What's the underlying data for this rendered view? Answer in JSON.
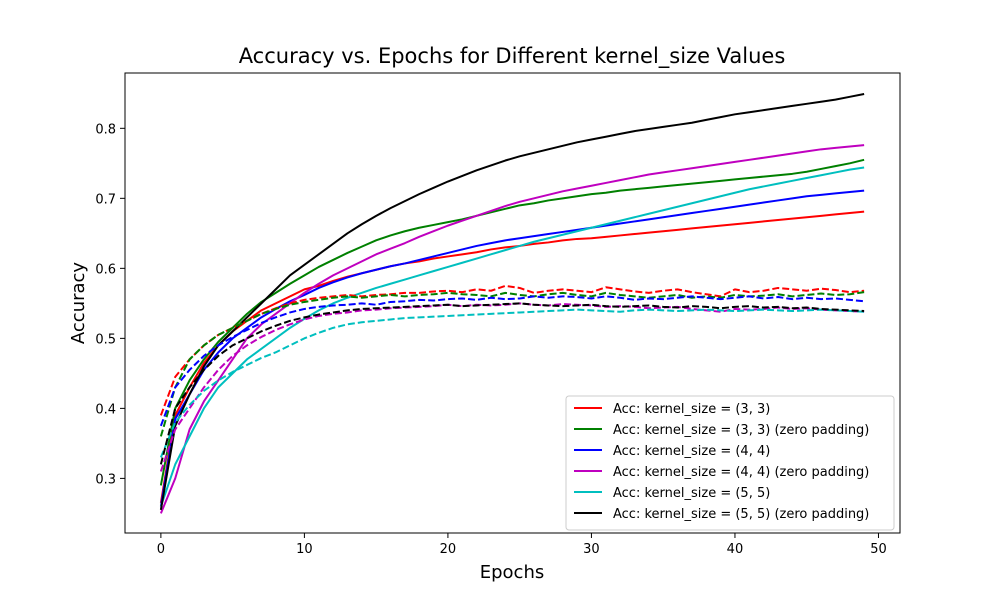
{
  "chart_data": {
    "type": "line",
    "title": "Accuracy vs. Epochs for Different kernel_size Values",
    "xlabel": "Epochs",
    "ylabel": "Accuracy",
    "xlim": [
      -2.5,
      51.5
    ],
    "ylim": [
      0.222,
      0.879
    ],
    "xticks": [
      0,
      10,
      20,
      30,
      40,
      50
    ],
    "yticks": [
      0.3,
      0.4,
      0.5,
      0.6,
      0.7,
      0.8
    ],
    "grid": false,
    "legend_position": "lower-right",
    "x": [
      0,
      1,
      2,
      3,
      4,
      5,
      6,
      7,
      8,
      9,
      10,
      11,
      12,
      13,
      14,
      15,
      16,
      17,
      18,
      19,
      20,
      21,
      22,
      23,
      24,
      25,
      26,
      27,
      28,
      29,
      30,
      31,
      32,
      33,
      34,
      35,
      36,
      37,
      38,
      39,
      40,
      41,
      42,
      43,
      44,
      45,
      46,
      47,
      48,
      49
    ],
    "series": [
      {
        "name": "Acc: kernel_size = (3, 3)",
        "color": "#ff0000",
        "style": "solid",
        "values": [
          0.265,
          0.39,
          0.43,
          0.465,
          0.49,
          0.51,
          0.525,
          0.54,
          0.55,
          0.56,
          0.57,
          0.575,
          0.582,
          0.588,
          0.593,
          0.598,
          0.603,
          0.607,
          0.61,
          0.614,
          0.617,
          0.62,
          0.623,
          0.627,
          0.63,
          0.632,
          0.635,
          0.637,
          0.64,
          0.642,
          0.643,
          0.645,
          0.647,
          0.649,
          0.651,
          0.653,
          0.655,
          0.657,
          0.659,
          0.661,
          0.663,
          0.665,
          0.667,
          0.669,
          0.671,
          0.673,
          0.675,
          0.677,
          0.679,
          0.681
        ]
      },
      {
        "name": "Acc: kernel_size = (3, 3) (zero padding)",
        "color": "#008000",
        "style": "solid",
        "values": [
          0.29,
          0.4,
          0.44,
          0.47,
          0.495,
          0.515,
          0.535,
          0.552,
          0.565,
          0.578,
          0.59,
          0.602,
          0.612,
          0.622,
          0.631,
          0.64,
          0.647,
          0.653,
          0.658,
          0.662,
          0.666,
          0.67,
          0.675,
          0.68,
          0.685,
          0.69,
          0.693,
          0.697,
          0.7,
          0.703,
          0.706,
          0.708,
          0.711,
          0.713,
          0.715,
          0.717,
          0.719,
          0.721,
          0.723,
          0.725,
          0.727,
          0.729,
          0.731,
          0.733,
          0.735,
          0.738,
          0.742,
          0.746,
          0.75,
          0.755
        ]
      },
      {
        "name": "Acc: kernel_size = (4, 4)",
        "color": "#0000ff",
        "style": "solid",
        "values": [
          0.26,
          0.385,
          0.42,
          0.455,
          0.48,
          0.5,
          0.515,
          0.53,
          0.542,
          0.553,
          0.562,
          0.572,
          0.58,
          0.587,
          0.593,
          0.598,
          0.603,
          0.607,
          0.612,
          0.617,
          0.622,
          0.627,
          0.632,
          0.636,
          0.64,
          0.643,
          0.646,
          0.649,
          0.652,
          0.655,
          0.658,
          0.661,
          0.664,
          0.667,
          0.67,
          0.673,
          0.676,
          0.679,
          0.682,
          0.685,
          0.688,
          0.691,
          0.694,
          0.697,
          0.7,
          0.703,
          0.705,
          0.707,
          0.709,
          0.711
        ]
      },
      {
        "name": "Acc: kernel_size = (4, 4) (zero padding)",
        "color": "#bf00bf",
        "style": "solid",
        "values": [
          0.25,
          0.3,
          0.37,
          0.41,
          0.44,
          0.47,
          0.5,
          0.52,
          0.535,
          0.55,
          0.565,
          0.578,
          0.59,
          0.6,
          0.61,
          0.62,
          0.628,
          0.636,
          0.645,
          0.653,
          0.661,
          0.668,
          0.675,
          0.682,
          0.689,
          0.695,
          0.7,
          0.705,
          0.71,
          0.714,
          0.718,
          0.722,
          0.726,
          0.73,
          0.734,
          0.737,
          0.74,
          0.743,
          0.746,
          0.749,
          0.752,
          0.755,
          0.758,
          0.761,
          0.764,
          0.767,
          0.77,
          0.772,
          0.774,
          0.776
        ]
      },
      {
        "name": "Acc: kernel_size = (5, 5)",
        "color": "#00bfbf",
        "style": "solid",
        "values": [
          0.26,
          0.32,
          0.36,
          0.4,
          0.43,
          0.45,
          0.47,
          0.485,
          0.5,
          0.515,
          0.528,
          0.54,
          0.55,
          0.558,
          0.565,
          0.572,
          0.578,
          0.584,
          0.59,
          0.596,
          0.602,
          0.608,
          0.614,
          0.62,
          0.626,
          0.632,
          0.638,
          0.643,
          0.648,
          0.653,
          0.658,
          0.663,
          0.668,
          0.673,
          0.678,
          0.683,
          0.688,
          0.693,
          0.698,
          0.703,
          0.708,
          0.713,
          0.717,
          0.721,
          0.725,
          0.729,
          0.733,
          0.737,
          0.741,
          0.744
        ]
      },
      {
        "name": "Acc: kernel_size = (5, 5) (zero padding)",
        "color": "#000000",
        "style": "solid",
        "values": [
          0.255,
          0.375,
          0.42,
          0.46,
          0.49,
          0.51,
          0.53,
          0.55,
          0.57,
          0.59,
          0.605,
          0.62,
          0.635,
          0.65,
          0.663,
          0.675,
          0.686,
          0.696,
          0.706,
          0.715,
          0.724,
          0.732,
          0.74,
          0.747,
          0.754,
          0.76,
          0.765,
          0.77,
          0.775,
          0.78,
          0.784,
          0.788,
          0.792,
          0.796,
          0.799,
          0.802,
          0.805,
          0.808,
          0.812,
          0.816,
          0.82,
          0.823,
          0.826,
          0.829,
          0.832,
          0.835,
          0.838,
          0.841,
          0.845,
          0.849
        ]
      },
      {
        "name": "",
        "color": "#ff0000",
        "style": "dashed",
        "values": [
          0.39,
          0.445,
          0.47,
          0.49,
          0.505,
          0.515,
          0.525,
          0.535,
          0.543,
          0.55,
          0.555,
          0.558,
          0.56,
          0.562,
          0.56,
          0.562,
          0.563,
          0.565,
          0.565,
          0.567,
          0.568,
          0.566,
          0.57,
          0.568,
          0.575,
          0.572,
          0.565,
          0.568,
          0.57,
          0.568,
          0.566,
          0.573,
          0.57,
          0.567,
          0.565,
          0.568,
          0.57,
          0.566,
          0.563,
          0.56,
          0.57,
          0.566,
          0.568,
          0.572,
          0.57,
          0.568,
          0.571,
          0.569,
          0.566,
          0.568
        ]
      },
      {
        "name": "",
        "color": "#008000",
        "style": "dashed",
        "values": [
          0.36,
          0.43,
          0.47,
          0.49,
          0.505,
          0.515,
          0.525,
          0.535,
          0.542,
          0.548,
          0.552,
          0.555,
          0.558,
          0.56,
          0.558,
          0.56,
          0.562,
          0.56,
          0.562,
          0.563,
          0.565,
          0.563,
          0.562,
          0.56,
          0.565,
          0.562,
          0.56,
          0.563,
          0.565,
          0.562,
          0.56,
          0.565,
          0.562,
          0.56,
          0.558,
          0.56,
          0.562,
          0.558,
          0.56,
          0.558,
          0.562,
          0.56,
          0.561,
          0.563,
          0.56,
          0.562,
          0.564,
          0.562,
          0.563,
          0.566
        ]
      },
      {
        "name": "",
        "color": "#0000ff",
        "style": "dashed",
        "values": [
          0.375,
          0.43,
          0.455,
          0.475,
          0.49,
          0.502,
          0.512,
          0.522,
          0.53,
          0.537,
          0.542,
          0.545,
          0.547,
          0.548,
          0.55,
          0.548,
          0.552,
          0.553,
          0.555,
          0.554,
          0.556,
          0.557,
          0.555,
          0.558,
          0.556,
          0.557,
          0.56,
          0.558,
          0.56,
          0.559,
          0.557,
          0.56,
          0.558,
          0.555,
          0.557,
          0.556,
          0.558,
          0.56,
          0.558,
          0.556,
          0.558,
          0.56,
          0.557,
          0.559,
          0.556,
          0.558,
          0.556,
          0.557,
          0.555,
          0.553
        ]
      },
      {
        "name": "",
        "color": "#bf00bf",
        "style": "dashed",
        "values": [
          0.31,
          0.37,
          0.4,
          0.43,
          0.455,
          0.475,
          0.49,
          0.502,
          0.512,
          0.52,
          0.527,
          0.532,
          0.535,
          0.537,
          0.54,
          0.541,
          0.543,
          0.544,
          0.545,
          0.546,
          0.548,
          0.546,
          0.548,
          0.547,
          0.548,
          0.55,
          0.548,
          0.547,
          0.549,
          0.548,
          0.547,
          0.545,
          0.546,
          0.545,
          0.543,
          0.544,
          0.545,
          0.542,
          0.54,
          0.538,
          0.542,
          0.541,
          0.542,
          0.544,
          0.542,
          0.543,
          0.541,
          0.54,
          0.539,
          0.538
        ]
      },
      {
        "name": "",
        "color": "#00bfbf",
        "style": "dashed",
        "values": [
          0.33,
          0.38,
          0.405,
          0.425,
          0.44,
          0.452,
          0.462,
          0.472,
          0.48,
          0.49,
          0.5,
          0.508,
          0.515,
          0.52,
          0.523,
          0.525,
          0.527,
          0.529,
          0.53,
          0.531,
          0.532,
          0.533,
          0.534,
          0.535,
          0.536,
          0.537,
          0.538,
          0.539,
          0.54,
          0.541,
          0.54,
          0.539,
          0.538,
          0.54,
          0.541,
          0.54,
          0.539,
          0.54,
          0.541,
          0.54,
          0.539,
          0.54,
          0.541,
          0.54,
          0.539,
          0.54,
          0.541,
          0.54,
          0.539,
          0.538
        ]
      },
      {
        "name": "",
        "color": "#000000",
        "style": "dashed",
        "values": [
          0.32,
          0.4,
          0.43,
          0.455,
          0.475,
          0.49,
          0.5,
          0.51,
          0.518,
          0.525,
          0.53,
          0.534,
          0.537,
          0.54,
          0.542,
          0.543,
          0.544,
          0.545,
          0.546,
          0.547,
          0.548,
          0.546,
          0.547,
          0.548,
          0.549,
          0.55,
          0.548,
          0.547,
          0.546,
          0.547,
          0.548,
          0.546,
          0.545,
          0.546,
          0.547,
          0.545,
          0.544,
          0.546,
          0.545,
          0.543,
          0.545,
          0.546,
          0.544,
          0.545,
          0.543,
          0.544,
          0.542,
          0.541,
          0.54,
          0.539
        ]
      }
    ]
  }
}
